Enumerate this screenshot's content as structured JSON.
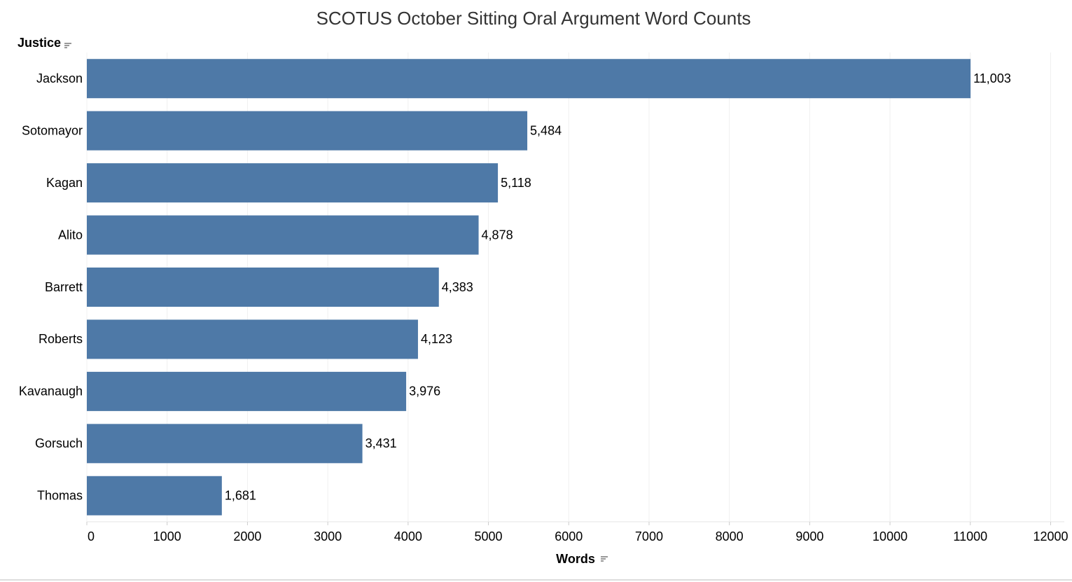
{
  "chart_data": {
    "type": "bar",
    "orientation": "horizontal",
    "title": "SCOTUS October Sitting Oral Argument Word Counts",
    "y_label": "Justice",
    "x_label": "Words",
    "categories": [
      "Jackson",
      "Sotomayor",
      "Kagan",
      "Alito",
      "Barrett",
      "Roberts",
      "Kavanaugh",
      "Gorsuch",
      "Thomas"
    ],
    "values": [
      11003,
      5484,
      5118,
      4878,
      4383,
      4123,
      3976,
      3431,
      1681
    ],
    "value_labels": [
      "11,003",
      "5,484",
      "5,118",
      "4,878",
      "4,383",
      "4,123",
      "3,976",
      "3,431",
      "1,681"
    ],
    "color": "#4e79a7",
    "xlim": [
      0,
      12170
    ],
    "xticks": [
      0,
      1000,
      2000,
      3000,
      4000,
      5000,
      6000,
      7000,
      8000,
      9000,
      10000,
      11000,
      12000
    ],
    "grid": true
  }
}
